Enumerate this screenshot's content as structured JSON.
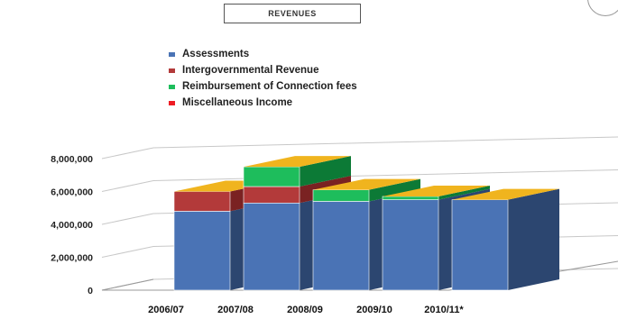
{
  "chart_data": {
    "type": "bar",
    "stacked": true,
    "three_d": true,
    "title": "REVENUES",
    "categories": [
      "2006/07",
      "2007/08",
      "2008/09",
      "2009/10",
      "2010/11*"
    ],
    "series": [
      {
        "name": "Assessments",
        "color": "#4a73b5",
        "side_color": "#2c4670",
        "top_color": "#7fa0d6",
        "values": [
          4800000,
          5300000,
          5400000,
          5500000,
          5500000
        ]
      },
      {
        "name": "Intergovernmental Revenue",
        "color": "#b33a3a",
        "side_color": "#7a2222",
        "top_color": "#d06a6a",
        "values": [
          1200000,
          1000000,
          0,
          0,
          0
        ]
      },
      {
        "name": "Reimbursement of Connection fees",
        "color": "#1ebd5c",
        "side_color": "#0c7a36",
        "top_color": "#5fd98d",
        "values": [
          0,
          1200000,
          700000,
          200000,
          0
        ]
      },
      {
        "name": "Miscellaneous Income",
        "color": "#ee1c24",
        "side_color": "#a01218",
        "top_color": "#f5787c",
        "values": [
          0,
          0,
          0,
          0,
          0
        ]
      }
    ],
    "top_cap_color": "#f0b41e",
    "yticks": [
      "0",
      "2,000,000",
      "4,000,000",
      "6,000,000",
      "8,000,000"
    ],
    "ylim": [
      0,
      8000000
    ],
    "grid": true,
    "legend_position": "top-center"
  },
  "legend_marker_colors": [
    "#4a73b5",
    "#b33a3a",
    "#1ebd5c",
    "#ee1c24"
  ]
}
